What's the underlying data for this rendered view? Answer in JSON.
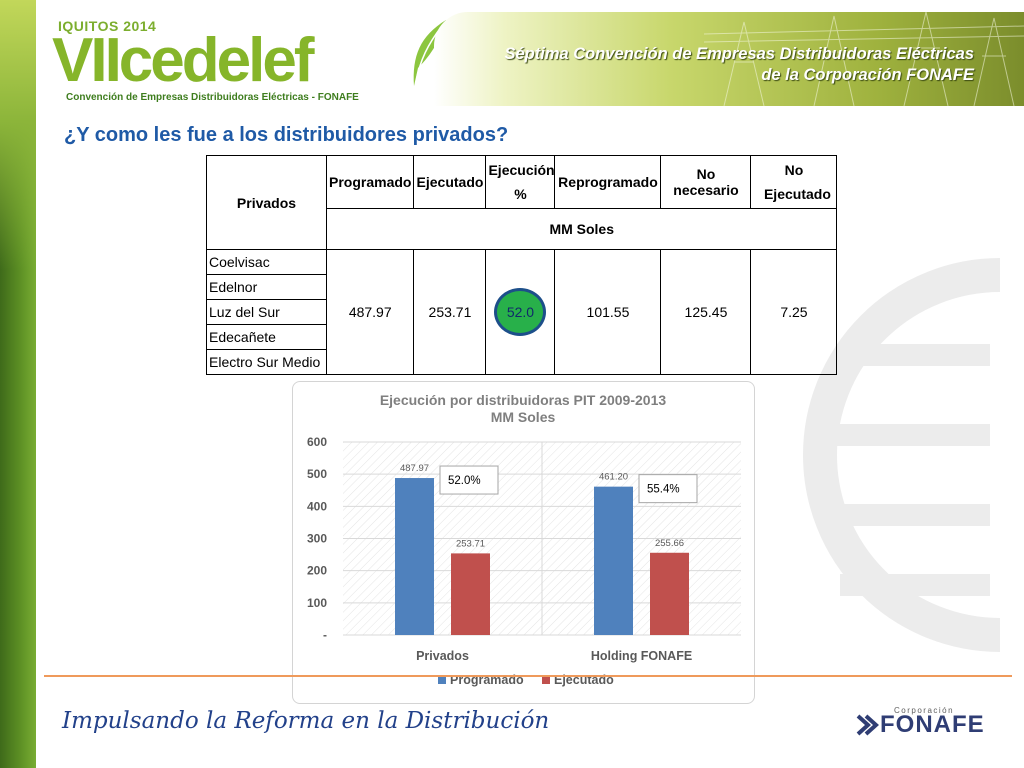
{
  "header": {
    "logo_top": "IQUITOS 2014",
    "logo_main": "VIIcedelef",
    "logo_sub": "Convención de Empresas Distribuidoras Eléctricas - FONAFE",
    "banner_line1": "Séptima Convención de Empresas Distribuidoras Eléctricas",
    "banner_line2": "de la Corporación FONAFE"
  },
  "title": "¿Y como les fue a los distribuidores privados?",
  "table": {
    "col_privados": "Privados",
    "col_programado": "Programado",
    "col_ejecutado": "Ejecutado",
    "col_ejecucion": "Ejecución %",
    "col_reprogramado": "Reprogramado",
    "col_no_necesario": "No necesario",
    "col_no_ejecutado": "No Ejecutado",
    "units": "MM Soles",
    "companies": [
      "Coelvisac",
      "Edelnor",
      "Luz del Sur",
      "Edecañete",
      "Electro Sur Medio"
    ],
    "values": {
      "programado": "487.97",
      "ejecutado": "253.71",
      "ejecucion": "52.0",
      "reprogramado": "101.55",
      "no_necesario": "125.45",
      "no_ejecutado": "7.25"
    }
  },
  "chart_data": {
    "type": "bar",
    "title": "Ejecución por distribuidoras PIT 2009-2013",
    "subtitle": "MM Soles",
    "categories": [
      "Privados",
      "Holding FONAFE"
    ],
    "series": [
      {
        "name": "Programado",
        "values": [
          487.97,
          461.2
        ],
        "labels": [
          "487.97",
          "461.20"
        ],
        "color": "#4f81bd"
      },
      {
        "name": "Ejecutado",
        "values": [
          253.71,
          255.66
        ],
        "labels": [
          "253.71",
          "255.66"
        ],
        "color": "#c0504d"
      }
    ],
    "annotations": [
      "52.0%",
      "55.4%"
    ],
    "yticks": [
      "-",
      "100",
      "200",
      "300",
      "400",
      "500",
      "600"
    ],
    "ylim": [
      0,
      600
    ],
    "legend": "bottom"
  },
  "footer": {
    "slogan": "Impulsando la Reforma en la Distribución",
    "brand_small": "Corporación",
    "brand_name": "FONAFE"
  },
  "colors": {
    "accent_green": "#86b52a",
    "title_blue": "#1f5aa6",
    "footer_line": "#ef9a5b"
  }
}
